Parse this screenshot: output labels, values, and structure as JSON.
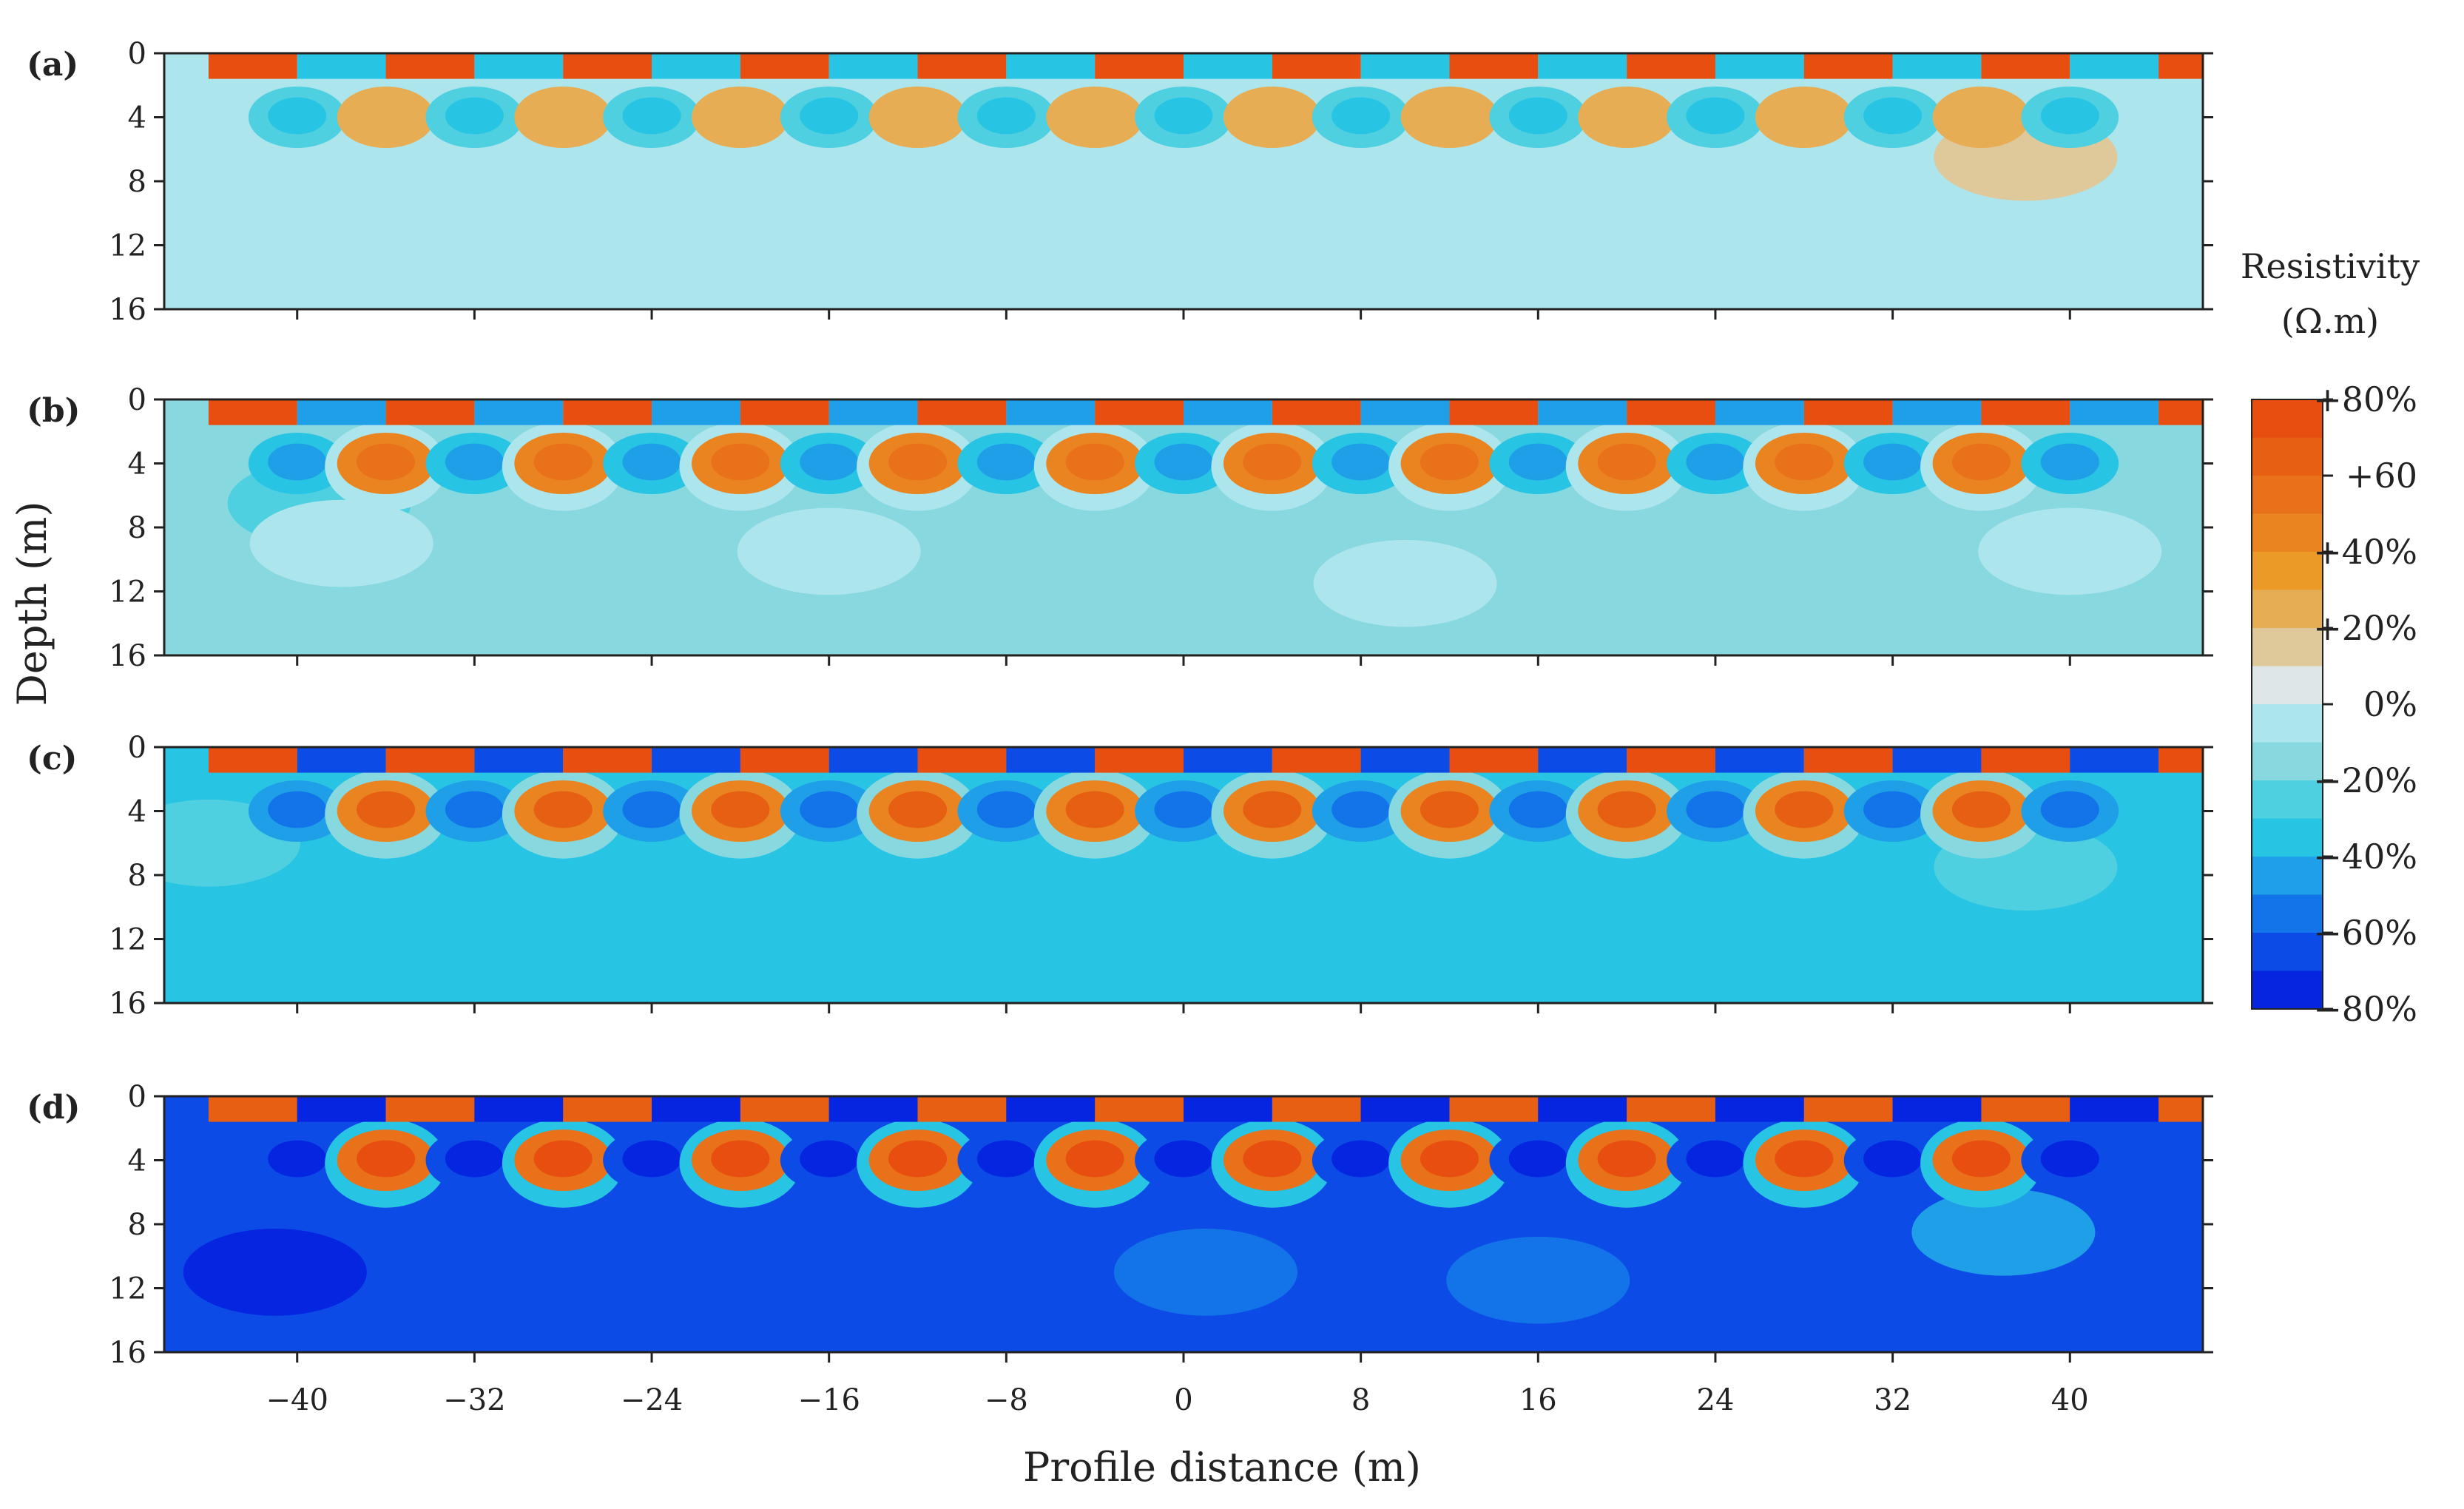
{
  "chart_data": {
    "type": "heatmap",
    "description_title": "",
    "xlabel": "Profile distance (m)",
    "ylabel": "Depth (m)",
    "xlim": [
      -46,
      46
    ],
    "ylim": [
      0,
      16
    ],
    "x_ticks": [
      -40,
      -32,
      -24,
      -16,
      -8,
      0,
      8,
      16,
      24,
      32,
      40
    ],
    "x_tick_labels": [
      "−40",
      "−32",
      "−24",
      "−16",
      "−8",
      "0",
      "8",
      "16",
      "24",
      "32",
      "40"
    ],
    "y_ticks": [
      0,
      4,
      8,
      12,
      16
    ],
    "y_tick_labels": [
      "0",
      "4",
      "8",
      "12",
      "16"
    ],
    "colorbar": {
      "title_line1": "Resistivity",
      "title_line2": "(Ω.m)",
      "range": [
        -80,
        80
      ],
      "labels": [
        {
          "value": 80,
          "text": "+80%"
        },
        {
          "value": 60,
          "text": "+60"
        },
        {
          "value": 40,
          "text": "+40%"
        },
        {
          "value": 20,
          "text": "+20%"
        },
        {
          "value": 0,
          "text": "0%"
        },
        {
          "value": -20,
          "text": "−20%"
        },
        {
          "value": -40,
          "text": "−40%"
        },
        {
          "value": -60,
          "text": "−60%"
        },
        {
          "value": -80,
          "text": "−80%"
        }
      ],
      "colors": [
        "#e84e0f",
        "#e65f12",
        "#e87119",
        "#ea8420",
        "#eb9a28",
        "#e6ad55",
        "#dfc89a",
        "#dfe6e8",
        "#ade5ec",
        "#88d8df",
        "#4fd0e0",
        "#27c4e4",
        "#1f9fe8",
        "#1274e8",
        "#0d4be6",
        "#0525e0"
      ]
    },
    "panels": [
      {
        "label": "(a)",
        "background_value": 0,
        "surface_positive": 75,
        "surface_negative": -30,
        "lobe_positive": 30,
        "lobe_negative": -30,
        "halo_value": 0,
        "features": [
          {
            "x": 38,
            "depth": 6.5,
            "value": 18
          }
        ]
      },
      {
        "label": "(b)",
        "background_value": -18,
        "surface_positive": 75,
        "surface_negative": -45,
        "lobe_positive": 55,
        "lobe_negative": -40,
        "halo_value": 0,
        "features": [
          {
            "x": -39,
            "depth": 6.5,
            "value": -28
          },
          {
            "x": -38,
            "depth": 9,
            "value": 0
          },
          {
            "x": -16,
            "depth": 9.5,
            "value": 0
          },
          {
            "x": 10,
            "depth": 11.5,
            "value": 0
          },
          {
            "x": 40,
            "depth": 9.5,
            "value": 0
          }
        ]
      },
      {
        "label": "(c)",
        "background_value": -35,
        "surface_positive": 75,
        "surface_negative": -60,
        "lobe_positive": 65,
        "lobe_negative": -55,
        "halo_value": -12,
        "features": [
          {
            "x": -44,
            "depth": 6,
            "value": -22
          },
          {
            "x": 38,
            "depth": 7.5,
            "value": -22
          }
        ]
      },
      {
        "label": "(d)",
        "background_value": -60,
        "surface_positive": 70,
        "surface_negative": -80,
        "lobe_positive": 72,
        "lobe_negative": -80,
        "halo_value": -30,
        "features": [
          {
            "x": -41,
            "depth": 11,
            "value": -70
          },
          {
            "x": 1,
            "depth": 11,
            "value": -50
          },
          {
            "x": 16,
            "depth": 11.5,
            "value": -50
          },
          {
            "x": 37,
            "depth": 8.5,
            "value": -40
          }
        ]
      }
    ]
  }
}
